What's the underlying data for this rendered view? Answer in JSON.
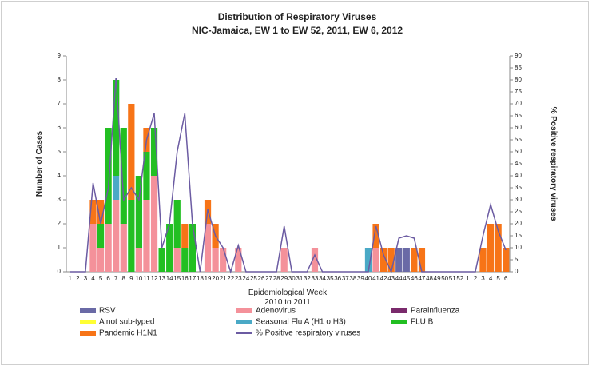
{
  "chart_data": {
    "type": "bar",
    "stacked": true,
    "title": "Distribution of Respiratory Viruses",
    "subtitle": "NIC-Jamaica,  EW 1 to EW 52, 2011, EW  6, 2012",
    "y_label": "Number of Cases",
    "y2_label": "% Positive respiratory viruses",
    "x_label": "Epidemiological Week",
    "x_sublabel": "2010 to 2011",
    "categories": [
      1,
      2,
      3,
      4,
      5,
      6,
      7,
      8,
      9,
      10,
      11,
      12,
      13,
      14,
      15,
      16,
      17,
      18,
      19,
      20,
      21,
      22,
      23,
      24,
      25,
      26,
      27,
      28,
      29,
      30,
      31,
      32,
      33,
      34,
      35,
      36,
      37,
      38,
      39,
      40,
      41,
      42,
      43,
      44,
      45,
      46,
      47,
      48,
      49,
      50,
      51,
      52,
      1,
      2,
      3,
      4,
      5,
      6
    ],
    "ylim": [
      0,
      9
    ],
    "yticks": [
      0,
      1,
      2,
      3,
      4,
      5,
      6,
      7,
      8,
      9
    ],
    "y2lim": [
      0,
      90
    ],
    "y2ticks": [
      0,
      5,
      10,
      15,
      20,
      25,
      30,
      35,
      40,
      45,
      50,
      55,
      60,
      65,
      70,
      75,
      80,
      85,
      90
    ],
    "legend": "bottom",
    "series": [
      {
        "name": "RSV",
        "color": "#6a6aa6",
        "values": [
          0,
          0,
          0,
          0,
          0,
          0,
          0,
          0,
          0,
          0,
          0,
          0,
          0,
          0,
          0,
          0,
          0,
          0,
          0,
          0,
          0,
          0,
          0,
          0,
          0,
          0,
          0,
          0,
          0,
          0,
          0,
          0,
          0,
          0,
          0,
          0,
          0,
          0,
          0,
          0,
          0,
          0,
          0,
          1,
          1,
          0,
          0,
          0,
          0,
          0,
          0,
          0,
          0,
          0,
          0,
          0,
          0,
          0
        ]
      },
      {
        "name": "Adenovirus",
        "color": "#f4919a",
        "values": [
          0,
          0,
          0,
          2,
          1,
          2,
          3,
          2,
          0,
          1,
          3,
          4,
          0,
          0,
          1,
          0,
          0,
          0,
          2,
          1,
          1,
          0,
          1,
          0,
          0,
          0,
          0,
          0,
          1,
          0,
          0,
          0,
          1,
          0,
          0,
          0,
          0,
          0,
          0,
          0,
          1,
          0,
          0,
          0,
          0,
          0,
          0,
          0,
          0,
          0,
          0,
          0,
          0,
          0,
          0,
          0,
          0,
          0
        ]
      },
      {
        "name": "Parainfluenza",
        "color": "#7a2a6c",
        "values": [
          0,
          0,
          0,
          0,
          0,
          0,
          0,
          0,
          0,
          0,
          0,
          0,
          0,
          0,
          0,
          0,
          0,
          0,
          0,
          0,
          0,
          0,
          0,
          0,
          0,
          0,
          0,
          0,
          0,
          0,
          0,
          0,
          0,
          0,
          0,
          0,
          0,
          0,
          0,
          0,
          0,
          0,
          0,
          0,
          0,
          0,
          0,
          0,
          0,
          0,
          0,
          0,
          0,
          0,
          0,
          0,
          0,
          0
        ]
      },
      {
        "name": "A not sub-typed",
        "color": "#ffff33",
        "values": [
          0,
          0,
          0,
          0,
          0,
          0,
          0,
          0,
          0,
          0,
          0,
          0,
          0,
          0,
          0,
          0,
          0,
          0,
          0,
          0,
          0,
          0,
          0,
          0,
          0,
          0,
          0,
          0,
          0,
          0,
          0,
          0,
          0,
          0,
          0,
          0,
          0,
          0,
          0,
          0,
          0,
          0,
          0,
          0,
          0,
          0,
          0,
          0,
          0,
          0,
          0,
          0,
          0,
          0,
          0,
          0,
          0,
          0
        ]
      },
      {
        "name": "Seasonal Flu A  (H1 o H3)",
        "color": "#4aa9c6",
        "values": [
          0,
          0,
          0,
          0,
          0,
          0,
          1,
          0,
          0,
          0,
          0,
          0,
          0,
          0,
          0,
          0,
          0,
          0,
          0,
          0,
          0,
          0,
          0,
          0,
          0,
          0,
          0,
          0,
          0,
          0,
          0,
          0,
          0,
          0,
          0,
          0,
          0,
          0,
          0,
          1,
          0,
          0,
          0,
          0,
          0,
          0,
          0,
          0,
          0,
          0,
          0,
          0,
          0,
          0,
          0,
          0,
          0,
          0
        ]
      },
      {
        "name": "FLU B",
        "color": "#22bf22",
        "values": [
          0,
          0,
          0,
          0,
          1,
          4,
          4,
          4,
          3,
          3,
          2,
          2,
          1,
          2,
          2,
          1,
          2,
          0,
          0,
          0,
          0,
          0,
          0,
          0,
          0,
          0,
          0,
          0,
          0,
          0,
          0,
          0,
          0,
          0,
          0,
          0,
          0,
          0,
          0,
          0,
          0,
          0,
          0,
          0,
          0,
          0,
          0,
          0,
          0,
          0,
          0,
          0,
          0,
          0,
          0,
          0,
          0,
          0
        ]
      },
      {
        "name": "Pandemic H1N1",
        "color": "#f77417",
        "values": [
          0,
          0,
          0,
          1,
          1,
          0,
          0,
          0,
          4,
          0,
          1,
          0,
          0,
          0,
          0,
          1,
          0,
          0,
          1,
          1,
          0,
          0,
          0,
          0,
          0,
          0,
          0,
          0,
          0,
          0,
          0,
          0,
          0,
          0,
          0,
          0,
          0,
          0,
          0,
          0,
          1,
          1,
          1,
          0,
          0,
          1,
          1,
          0,
          0,
          0,
          0,
          0,
          0,
          0,
          1,
          2,
          2,
          1
        ]
      },
      {
        "name": "% Positive respiratory viruses",
        "type": "line",
        "axis": "y2",
        "color": "#6b5ba2",
        "values": [
          0,
          0,
          0,
          37,
          20,
          35,
          81,
          30,
          35,
          30,
          55,
          66,
          10,
          20,
          50,
          66,
          20,
          0,
          26,
          15,
          10,
          0,
          11,
          0,
          0,
          0,
          0,
          0,
          19,
          0,
          0,
          0,
          7,
          0,
          0,
          0,
          0,
          0,
          0,
          0,
          19,
          7,
          0,
          14,
          15,
          14,
          0,
          0,
          0,
          0,
          0,
          0,
          0,
          0,
          15,
          28,
          17,
          9
        ]
      }
    ]
  }
}
